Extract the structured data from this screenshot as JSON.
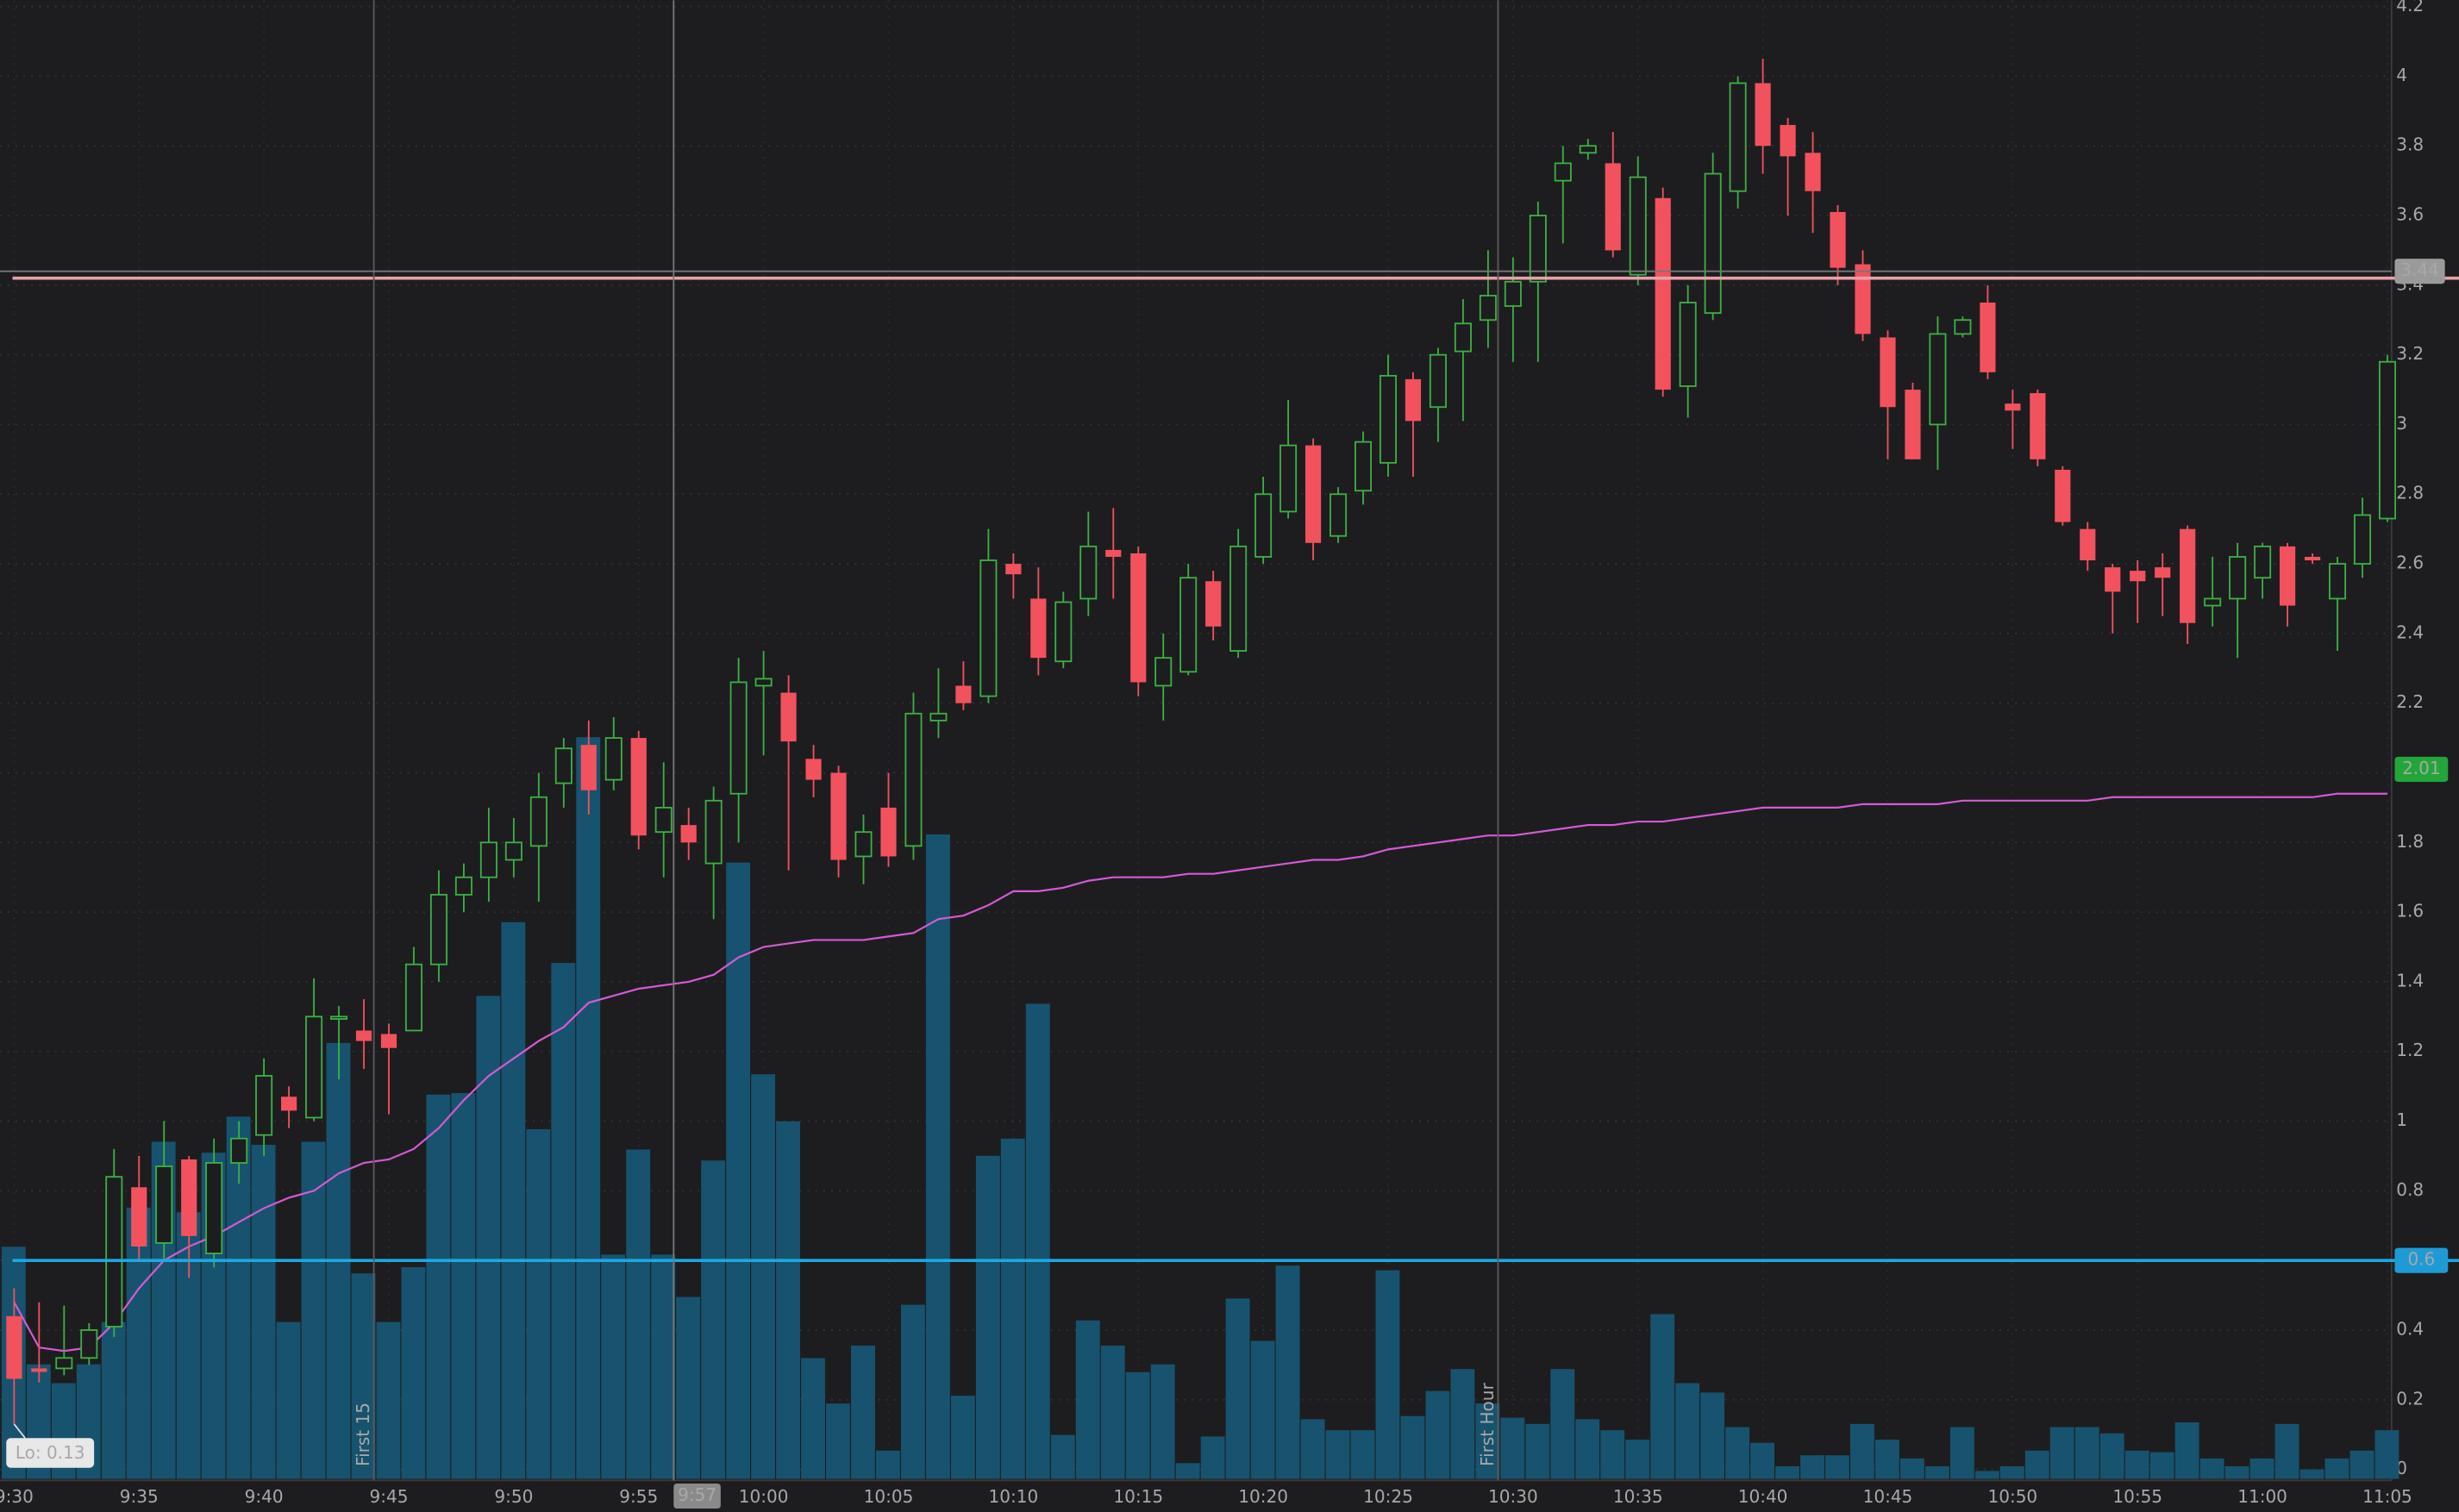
{
  "chart_data": {
    "type": "candlestick",
    "categories": [
      "9:30",
      null,
      null,
      null,
      null,
      "9:35",
      null,
      null,
      null,
      null,
      "9:40",
      null,
      null,
      null,
      null,
      "9:45",
      null,
      null,
      null,
      null,
      "9:50",
      null,
      null,
      null,
      null,
      "9:55",
      null,
      null,
      null,
      null,
      "10:00",
      null,
      null,
      null,
      null,
      "10:05",
      null,
      null,
      null,
      null,
      "10:10",
      null,
      null,
      null,
      null,
      "10:15",
      null,
      null,
      null,
      null,
      "10:20",
      null,
      null,
      null,
      null,
      "10:25",
      null,
      null,
      null,
      null,
      "10:30",
      null,
      null,
      null,
      null,
      "10:35",
      null,
      null,
      null,
      null,
      "10:40",
      null,
      null,
      null,
      null,
      "10:45",
      null,
      null,
      null,
      null,
      "10:50",
      null,
      null,
      null,
      null,
      "10:55",
      null,
      null,
      null,
      null,
      "11:00",
      null,
      null,
      null,
      null,
      "11:05"
    ],
    "open": [
      0.44,
      0.29,
      0.29,
      0.32,
      0.41,
      0.81,
      0.65,
      0.89,
      0.62,
      0.88,
      0.96,
      1.07,
      1.01,
      1.3,
      1.26,
      1.25,
      1.26,
      1.45,
      1.65,
      1.7,
      1.75,
      1.79,
      1.97,
      2.08,
      1.98,
      2.1,
      1.83,
      1.85,
      1.74,
      1.94,
      2.25,
      2.23,
      2.04,
      2.0,
      1.76,
      1.9,
      1.79,
      2.15,
      2.25,
      2.22,
      2.6,
      2.5,
      2.32,
      2.5,
      2.64,
      2.63,
      2.25,
      2.29,
      2.55,
      2.35,
      2.62,
      2.75,
      2.94,
      2.68,
      2.81,
      2.89,
      3.13,
      3.05,
      3.21,
      3.3,
      3.34,
      3.41,
      3.7,
      3.78,
      3.75,
      3.43,
      3.65,
      3.11,
      3.32,
      3.67,
      3.98,
      3.86,
      3.78,
      3.61,
      3.46,
      3.25,
      3.1,
      3.0,
      3.26,
      3.35,
      3.06,
      3.09,
      2.87,
      2.7,
      2.59,
      2.58,
      2.59,
      2.7,
      2.48,
      2.5,
      2.56,
      2.65,
      2.62,
      2.5,
      2.6,
      2.73
    ],
    "high": [
      0.52,
      0.48,
      0.47,
      0.42,
      0.92,
      0.9,
      1.0,
      0.9,
      0.95,
      1.0,
      1.18,
      1.1,
      1.41,
      1.33,
      1.35,
      1.28,
      1.5,
      1.72,
      1.74,
      1.9,
      1.87,
      2.0,
      2.1,
      2.15,
      2.16,
      2.12,
      2.03,
      1.9,
      1.96,
      2.33,
      2.35,
      2.28,
      2.08,
      2.02,
      1.88,
      2.0,
      2.23,
      2.3,
      2.32,
      2.7,
      2.63,
      2.59,
      2.52,
      2.75,
      2.76,
      2.65,
      2.4,
      2.6,
      2.58,
      2.7,
      2.85,
      3.07,
      2.96,
      2.82,
      2.98,
      3.2,
      3.15,
      3.22,
      3.36,
      3.5,
      3.48,
      3.64,
      3.8,
      3.82,
      3.84,
      3.77,
      3.68,
      3.4,
      3.78,
      4.0,
      4.05,
      3.88,
      3.84,
      3.63,
      3.5,
      3.27,
      3.12,
      3.31,
      3.31,
      3.4,
      3.1,
      3.1,
      2.88,
      2.72,
      2.6,
      2.61,
      2.63,
      2.71,
      2.62,
      2.66,
      2.66,
      2.66,
      2.63,
      2.62,
      2.79,
      3.2
    ],
    "low": [
      0.13,
      0.25,
      0.27,
      0.3,
      0.38,
      0.6,
      0.6,
      0.55,
      0.58,
      0.82,
      0.9,
      0.98,
      1.0,
      1.12,
      1.15,
      1.02,
      1.26,
      1.4,
      1.6,
      1.63,
      1.7,
      1.63,
      1.9,
      1.88,
      1.95,
      1.78,
      1.7,
      1.75,
      1.58,
      1.8,
      2.05,
      1.72,
      1.93,
      1.7,
      1.68,
      1.73,
      1.75,
      2.1,
      2.18,
      2.2,
      2.5,
      2.28,
      2.3,
      2.45,
      2.5,
      2.22,
      2.15,
      2.28,
      2.38,
      2.33,
      2.6,
      2.73,
      2.61,
      2.66,
      2.77,
      2.85,
      2.85,
      2.95,
      3.01,
      3.22,
      3.18,
      3.18,
      3.52,
      3.76,
      3.48,
      3.4,
      3.08,
      3.02,
      3.3,
      3.62,
      3.72,
      3.6,
      3.55,
      3.4,
      3.24,
      2.9,
      2.9,
      2.87,
      3.25,
      3.13,
      2.93,
      2.88,
      2.71,
      2.58,
      2.4,
      2.43,
      2.45,
      2.37,
      2.42,
      2.33,
      2.5,
      2.42,
      2.6,
      2.35,
      2.56,
      2.72
    ],
    "close": [
      0.26,
      0.28,
      0.32,
      0.4,
      0.84,
      0.64,
      0.87,
      0.67,
      0.88,
      0.95,
      1.13,
      1.03,
      1.3,
      1.3,
      1.23,
      1.21,
      1.45,
      1.65,
      1.7,
      1.8,
      1.8,
      1.93,
      2.07,
      1.95,
      2.1,
      1.82,
      1.9,
      1.8,
      1.92,
      2.26,
      2.27,
      2.09,
      1.98,
      1.75,
      1.83,
      1.76,
      2.17,
      2.17,
      2.2,
      2.61,
      2.57,
      2.33,
      2.49,
      2.65,
      2.62,
      2.26,
      2.33,
      2.56,
      2.42,
      2.65,
      2.8,
      2.94,
      2.66,
      2.8,
      2.95,
      3.14,
      3.01,
      3.2,
      3.29,
      3.37,
      3.41,
      3.6,
      3.75,
      3.8,
      3.5,
      3.71,
      3.1,
      3.35,
      3.72,
      3.98,
      3.8,
      3.77,
      3.67,
      3.45,
      3.26,
      3.05,
      2.9,
      3.26,
      3.3,
      3.15,
      3.04,
      2.9,
      2.72,
      2.61,
      2.52,
      2.55,
      2.56,
      2.43,
      2.5,
      2.62,
      2.65,
      2.48,
      2.61,
      2.6,
      2.74,
      3.18
    ],
    "volume": [
      148,
      73,
      61,
      73,
      100,
      173,
      215,
      170,
      208,
      231,
      213,
      100,
      215,
      278,
      131,
      100,
      135,
      245,
      246,
      308,
      355,
      223,
      329,
      473,
      143,
      210,
      143,
      116,
      203,
      393,
      258,
      228,
      77,
      48,
      85,
      18,
      111,
      411,
      53,
      206,
      217,
      303,
      28,
      101,
      85,
      68,
      73,
      10,
      27,
      115,
      88,
      136,
      38,
      31,
      31,
      133,
      40,
      56,
      70,
      48,
      39,
      35,
      70,
      38,
      31,
      25,
      105,
      61,
      55,
      33,
      23,
      8,
      15,
      15,
      35,
      25,
      13,
      8,
      33,
      5,
      8,
      18,
      33,
      33,
      29,
      18,
      17,
      36,
      13,
      8,
      13,
      35,
      6,
      13,
      18,
      31
    ],
    "vwap": [
      0.48,
      0.35,
      0.34,
      0.35,
      0.42,
      0.52,
      0.6,
      0.64,
      0.67,
      0.71,
      0.75,
      0.78,
      0.8,
      0.85,
      0.88,
      0.89,
      0.92,
      0.98,
      1.06,
      1.13,
      1.18,
      1.23,
      1.27,
      1.34,
      1.36,
      1.38,
      1.39,
      1.4,
      1.42,
      1.47,
      1.5,
      1.51,
      1.52,
      1.52,
      1.52,
      1.53,
      1.54,
      1.58,
      1.59,
      1.62,
      1.66,
      1.66,
      1.67,
      1.69,
      1.7,
      1.7,
      1.7,
      1.71,
      1.71,
      1.72,
      1.73,
      1.74,
      1.75,
      1.75,
      1.76,
      1.78,
      1.79,
      1.8,
      1.81,
      1.82,
      1.82,
      1.83,
      1.84,
      1.85,
      1.85,
      1.86,
      1.86,
      1.87,
      1.88,
      1.89,
      1.9,
      1.9,
      1.9,
      1.9,
      1.91,
      1.91,
      1.91,
      1.91,
      1.92,
      1.92,
      1.92,
      1.92,
      1.92,
      1.92,
      1.93,
      1.93,
      1.93,
      1.93,
      1.93,
      1.93,
      1.93,
      1.93,
      1.93,
      1.94,
      1.94,
      1.94
    ],
    "up_color": "#3cb043",
    "down_color": "#f2525e",
    "volume_color": "#17536e",
    "vwap_color": "#d45ad4",
    "ylim": [
      0,
      4.2
    ],
    "yticks": [
      0,
      0.2,
      0.4,
      0.6,
      0.8,
      1,
      1.2,
      1.4,
      1.6,
      1.8,
      2,
      2.2,
      2.4,
      2.6,
      2.8,
      3,
      3.2,
      3.4,
      3.6,
      3.8,
      4,
      4.2
    ],
    "grid": true,
    "levels": [
      {
        "value": 3.42,
        "color": "#e8a0a8"
      },
      {
        "value": 0.6,
        "color": "#1ea7e1"
      }
    ],
    "price_labels": [
      {
        "value": 0.6,
        "color": "#1e9bd7"
      },
      {
        "value": 2.01,
        "color": "#22a63a"
      }
    ],
    "crosshair": {
      "time": "9:57",
      "price": 3.44
    },
    "markers": [
      {
        "time": "9:45",
        "label": "First 15"
      },
      {
        "time": "10:30",
        "label": "First Hour"
      }
    ],
    "low_note": "Lo: 0.13"
  }
}
